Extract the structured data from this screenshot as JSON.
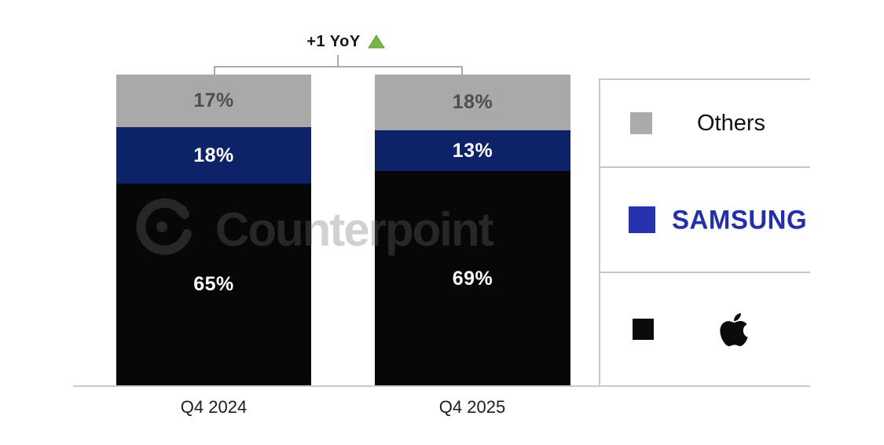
{
  "chart_data": {
    "type": "bar",
    "stacked": true,
    "percent": true,
    "categories": [
      "Q4 2024",
      "Q4 2025"
    ],
    "series": [
      {
        "name": "Apple",
        "values": [
          65,
          69
        ],
        "labels": [
          "65%",
          "69%"
        ],
        "color": "#070707",
        "label_color": "#ffffff"
      },
      {
        "name": "Samsung",
        "values": [
          18,
          13
        ],
        "labels": [
          "18%",
          "13%"
        ],
        "color": "#0d2368",
        "label_color": "#ffffff"
      },
      {
        "name": "Others",
        "values": [
          17,
          18
        ],
        "labels": [
          "17%",
          "18%"
        ],
        "color": "#a9a9a9",
        "label_color": "#4f4f4f"
      }
    ],
    "ylim": [
      0,
      100
    ],
    "grid": false,
    "legend_position": "right",
    "annotation": {
      "text": "+1 YoY",
      "indicator": "up-triangle",
      "indicator_color": "#79b544",
      "indicator_edge_color": "#639a38"
    }
  },
  "legend": {
    "items": [
      {
        "label": "Others",
        "style": "text",
        "swatch_color": "#ababab"
      },
      {
        "label": "SAMSUNG",
        "style": "wordmark",
        "swatch_color": "#2532ae",
        "wordmark_color": "#2330a9"
      },
      {
        "label": "Apple",
        "style": "logo",
        "swatch_color": "#0a0a0a",
        "icon": "apple-logo-icon"
      }
    ]
  },
  "watermark": {
    "text": "Counterpoint",
    "logo": "counterpoint-logo"
  },
  "colors": {
    "background": "#ffffff",
    "bracket": "#ababab",
    "axis_line": "#cbcbcb",
    "gray_segment_text": "#4f4f4f"
  }
}
